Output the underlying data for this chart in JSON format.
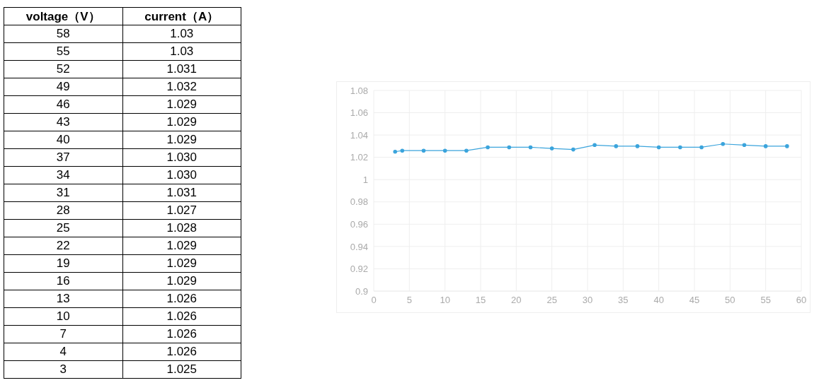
{
  "chart_data": {
    "type": "line",
    "annotations": [
      "voltage（V）",
      "current（A）",
      "58",
      "55",
      "52",
      "49",
      "46",
      "43",
      "40",
      "37",
      "34",
      "31",
      "28",
      "25",
      "22",
      "19",
      "16",
      "13",
      "10",
      "7",
      "4",
      "3"
    ],
    "x": [
      58,
      55,
      52,
      49,
      46,
      43,
      40,
      37,
      34,
      31,
      28,
      25,
      22,
      19,
      16,
      13,
      10,
      7,
      4,
      3
    ],
    "series": [
      {
        "color": "#3ba4dc",
        "values": [
          1.03,
          1.03,
          1.031,
          1.032,
          1.029,
          1.029,
          1.029,
          1.03,
          1.03,
          1.031,
          1.027,
          1.028,
          1.029,
          1.029,
          1.029,
          1.026,
          1.026,
          1.026,
          1.026,
          1.025
        ]
      }
    ],
    "value_labels": [
      "1.03",
      "1.03",
      "1.031",
      "1.032",
      "1.029",
      "1.029",
      "1.029",
      "1.030",
      "1.030",
      "1.031",
      "1.027",
      "1.028",
      "1.029",
      "1.029",
      "1.029",
      "1.026",
      "1.026",
      "1.026",
      "1.026",
      "1.025"
    ],
    "xlim": [
      0,
      60
    ],
    "xticks": [
      0,
      5,
      10,
      15,
      20,
      25,
      30,
      35,
      40,
      45,
      50,
      55,
      60
    ],
    "ylim": [
      0.9,
      1.08
    ],
    "yticks": [
      0.9,
      0.92,
      0.94,
      0.96,
      0.98,
      1,
      1.02,
      1.04,
      1.06,
      1.08
    ],
    "grid": true,
    "marker": "circle",
    "line_style": "solid"
  }
}
